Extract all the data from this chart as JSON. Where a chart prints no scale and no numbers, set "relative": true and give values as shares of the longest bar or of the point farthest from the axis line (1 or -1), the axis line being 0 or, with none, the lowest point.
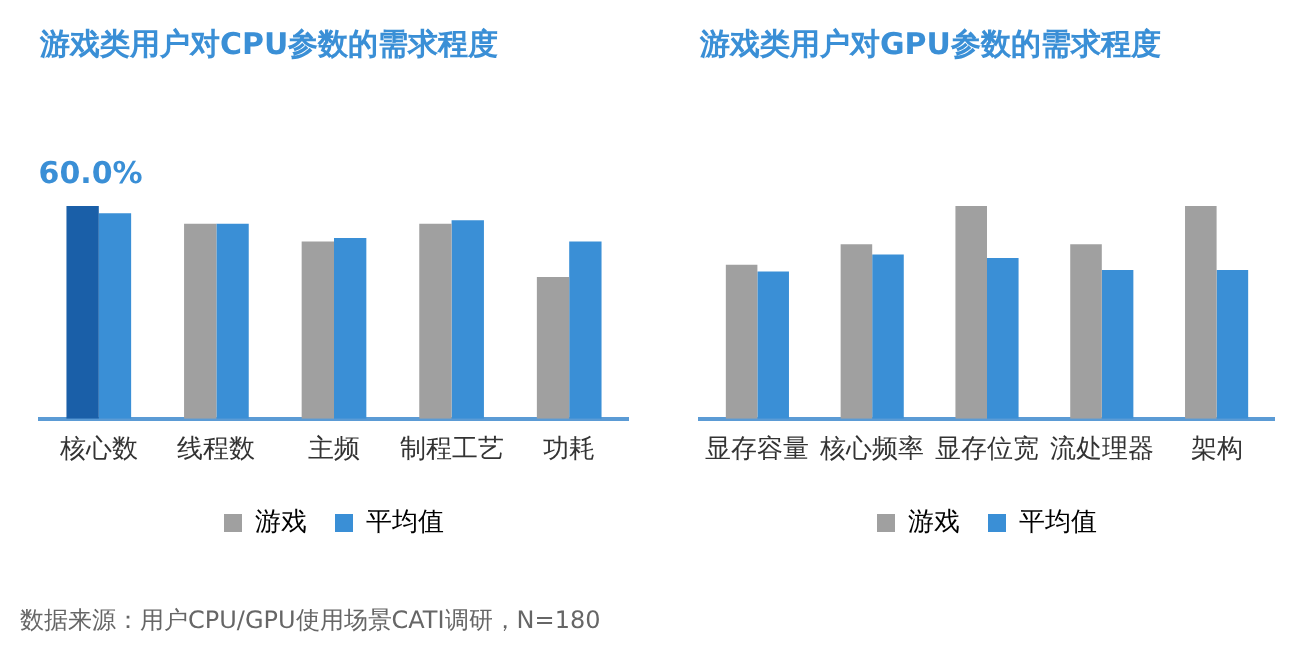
{
  "chart_data": [
    {
      "type": "bar",
      "title": "游戏类用户对CPU参数的需求程度",
      "categories": [
        "核心数",
        "线程数",
        "主频",
        "制程工艺",
        "功耗"
      ],
      "tick_labels": "x",
      "grid": false,
      "legend": "bottom",
      "series": [
        {
          "name": "游戏",
          "color": "#a0a0a0",
          "colors": [
            "#1a5fa8",
            "#a0a0a0",
            "#a0a0a0",
            "#a0a0a0",
            "#a0a0a0"
          ],
          "values": [
            60,
            55,
            50,
            55,
            40
          ],
          "value_labels": [
            "60.0%",
            null,
            null,
            null,
            null
          ]
        },
        {
          "name": "平均值",
          "color": "#3a8fd6",
          "values": [
            58,
            55,
            51,
            56,
            50
          ]
        }
      ],
      "annotations": [
        "数据来源：用户CPU/GPU使用场景CATI调研，N=180"
      ]
    },
    {
      "type": "bar",
      "title": "游戏类用户对GPU参数的需求程度",
      "categories": [
        "显存容量",
        "核心频率",
        "显存位宽",
        "流处理器",
        "架构"
      ],
      "relative": true,
      "grid": false,
      "legend": "bottom",
      "series": [
        {
          "name": "游戏",
          "color": "#a0a0a0",
          "values": [
            0.724,
            0.821,
            1,
            0.821,
            1
          ]
        },
        {
          "name": "平均值",
          "color": "#3a8fd6",
          "values": [
            0.693,
            0.773,
            0.756,
            0.699,
            0.699
          ]
        }
      ]
    }
  ]
}
